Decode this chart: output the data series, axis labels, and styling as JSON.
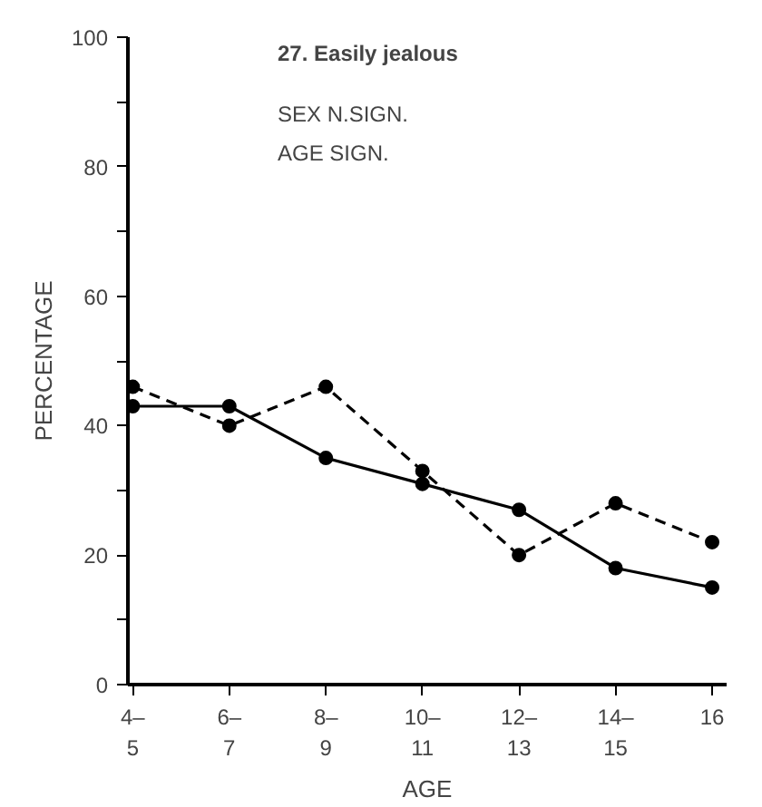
{
  "chart_data": {
    "type": "line",
    "title": "27. Easily jealous",
    "xlabel": "AGE",
    "ylabel": "PERCENTAGE",
    "annotations": [
      "SEX N.SIGN.",
      "AGE SIGN."
    ],
    "categories": [
      "4–\n5",
      "6–\n7",
      "8–\n9",
      "10–\n11",
      "12–\n13",
      "14–\n15",
      "16"
    ],
    "series": [
      {
        "color": "#000000",
        "line_style": "solid",
        "values": [
          43,
          43,
          35,
          31,
          27,
          18,
          15
        ]
      },
      {
        "color": "#000000",
        "line_style": "dashed",
        "values": [
          46,
          40,
          46,
          33,
          20,
          28,
          22
        ]
      }
    ],
    "ylim": [
      0,
      100
    ],
    "yticks": [
      0,
      {
        "value": 10,
        "label": null
      },
      20,
      {
        "value": 30,
        "label": null
      },
      40,
      {
        "value": 50,
        "label": null
      },
      60,
      {
        "value": 70,
        "label": null
      },
      80,
      {
        "value": 90,
        "label": null
      },
      100
    ],
    "grid": false,
    "marker": "circle"
  }
}
